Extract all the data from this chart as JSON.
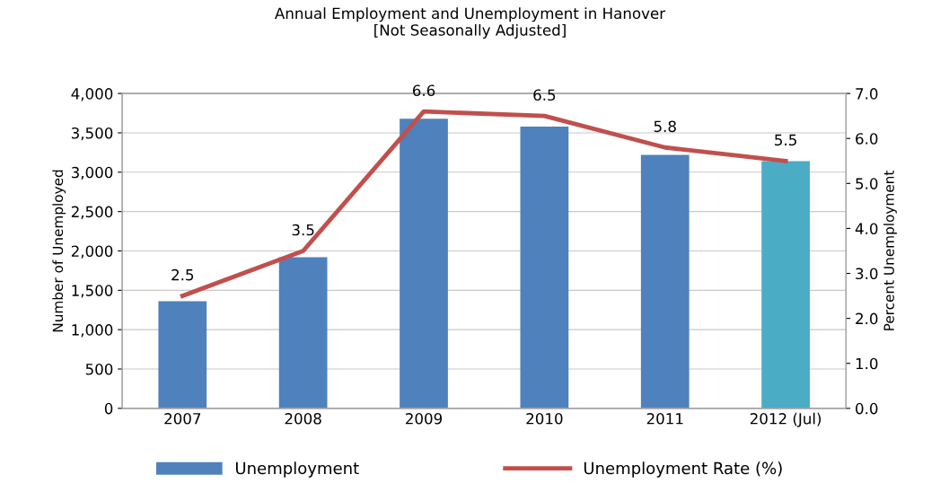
{
  "chart_data": {
    "type": "bar",
    "title": "Annual Employment and Unemployment in Hanover\n[Not Seasonally Adjusted]",
    "ylabel": "Number of Unemployed",
    "y2label": "Percent Unemployment",
    "categories": [
      "2007",
      "2008",
      "2009",
      "2010",
      "2011",
      "2012 (Jul)"
    ],
    "series": [
      {
        "name": "Unemployment",
        "color": "#4f81bd",
        "colors": [
          "#4f81bd",
          "#4f81bd",
          "#4f81bd",
          "#4f81bd",
          "#4f81bd",
          "#4bacc6"
        ],
        "values": [
          1360,
          1920,
          3680,
          3580,
          3220,
          3140
        ]
      },
      {
        "name": "Unemployment Rate (%)",
        "type": "line",
        "axis": "y2",
        "color": "#c0504d",
        "values": [
          2.5,
          3.5,
          6.6,
          6.5,
          5.8,
          5.5
        ],
        "value_labels": [
          "2.5",
          "3.5",
          "6.6",
          "6.5",
          "5.8",
          "5.5"
        ]
      }
    ],
    "ylim": [
      0,
      4000
    ],
    "yticks": [
      {
        "value": 0,
        "label": "0"
      },
      {
        "value": 500,
        "label": "500"
      },
      {
        "value": 1000,
        "label": "1,000"
      },
      {
        "value": 1500,
        "label": "1,500"
      },
      {
        "value": 2000,
        "label": "2,000"
      },
      {
        "value": 2500,
        "label": "2,500"
      },
      {
        "value": 3000,
        "label": "3,000"
      },
      {
        "value": 3500,
        "label": "3,500"
      },
      {
        "value": 4000,
        "label": "4,000"
      }
    ],
    "y2lim": [
      0,
      7
    ],
    "y2ticks": [
      {
        "value": 0,
        "label": "0.0"
      },
      {
        "value": 1,
        "label": "1.0"
      },
      {
        "value": 2,
        "label": "2.0"
      },
      {
        "value": 3,
        "label": "3.0"
      },
      {
        "value": 4,
        "label": "4.0"
      },
      {
        "value": 5,
        "label": "5.0"
      },
      {
        "value": 6,
        "label": "6.0"
      },
      {
        "value": 7,
        "label": "7.0"
      }
    ],
    "grid": "y",
    "legend": "bottom",
    "marker": "none",
    "line_style": "solid"
  }
}
